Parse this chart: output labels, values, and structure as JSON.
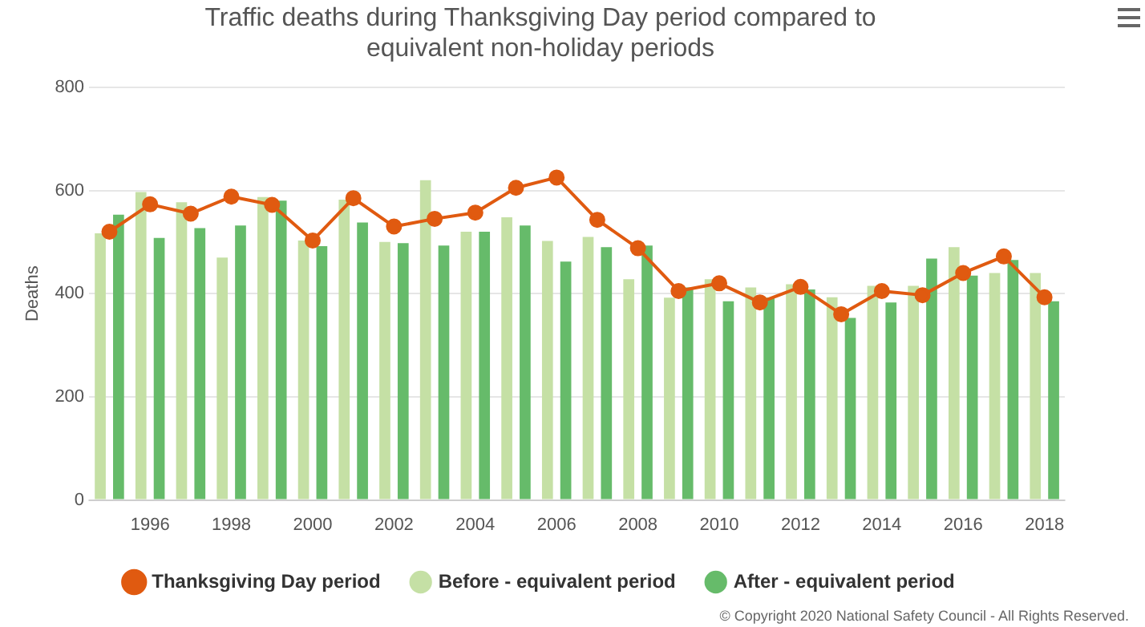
{
  "chart_data": {
    "type": "bar",
    "title": "Traffic deaths during Thanksgiving Day period compared to equivalent non-holiday periods",
    "ylabel": "Deaths",
    "categories": [
      null,
      "1996",
      null,
      "1998",
      null,
      "2000",
      null,
      "2002",
      null,
      "2004",
      null,
      "2006",
      null,
      "2008",
      null,
      "2010",
      null,
      "2012",
      null,
      "2014",
      null,
      "2016",
      null,
      "2018"
    ],
    "series": [
      {
        "name": "Thanksgiving Day period",
        "type": "line",
        "color": "#e05a10",
        "values": [
          520,
          573,
          555,
          588,
          572,
          503,
          585,
          530,
          545,
          557,
          605,
          625,
          543,
          488,
          405,
          420,
          383,
          413,
          360,
          405,
          397,
          440,
          472,
          393
        ]
      },
      {
        "name": "Before - equivalent period",
        "color": "#c5e0a5",
        "values": [
          517,
          597,
          577,
          470,
          587,
          503,
          582,
          500,
          620,
          520,
          548,
          502,
          510,
          428,
          392,
          428,
          412,
          418,
          393,
          415,
          415,
          490,
          440,
          440
        ]
      },
      {
        "name": "After - equivalent period",
        "color": "#66bb6a",
        "values": [
          553,
          508,
          527,
          532,
          580,
          492,
          538,
          498,
          493,
          520,
          532,
          462,
          490,
          493,
          412,
          385,
          392,
          408,
          353,
          383,
          468,
          435,
          465,
          385
        ]
      }
    ],
    "ylim": [
      0,
      800
    ],
    "yticks": [
      0,
      200,
      400,
      600,
      800
    ],
    "grid": "y",
    "legend": "bottom",
    "marker": "circle",
    "annotations": [
      "© Copyright 2020 National Safety Council - All Rights Reserved."
    ]
  }
}
